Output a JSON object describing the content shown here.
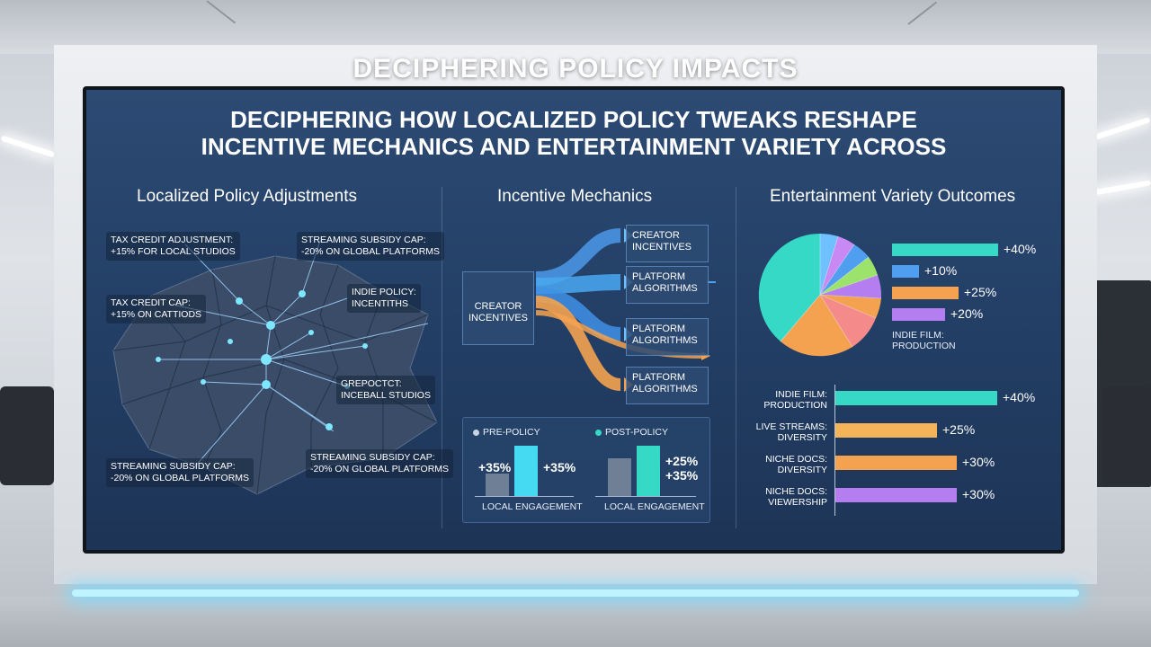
{
  "headline": "DECIPHERING POLICY IMPACTS",
  "panel_title_line1": "DECIPHERING HOW LOCALIZED POLICY TWEAKS RESHAPE",
  "panel_title_line2": "INCENTIVE MECHANICS AND ENTERTAINMENT VARIETY ACROSS",
  "colors": {
    "teal": "#35d9c6",
    "blue": "#4f9ef0",
    "orange": "#f4a24f",
    "purple": "#b47ef0",
    "cyan": "#46d9f2"
  },
  "left": {
    "title": "Localized Policy Adjustments",
    "labels": [
      {
        "line1": "TAX CREDIT ADJUSTMENT:",
        "line2": "+15% FOR LOCAL STUDIOS"
      },
      {
        "line1": "STREAMING SUBSIDY CAP:",
        "line2": "-20% ON GLOBAL PLATFORMS"
      },
      {
        "line1": "TAX CREDIT CAP:",
        "line2": "+15% ON CATTIODS"
      },
      {
        "line1": "INDIE POLICY:",
        "line2": "INCENTITHS"
      },
      {
        "line1": "GREPOCTCT:",
        "line2": "INCEBALL STUDIOS"
      },
      {
        "line1": "STREAMING SUBSIDY CAP:",
        "line2": "-20% ON GLOBAL PLATFORMS"
      },
      {
        "line1": "STREAMING SUBSIDY CAP:",
        "line2": "-20% ON GLOBAL PLATFORMS"
      }
    ]
  },
  "middle": {
    "title": "Incentive Mechanics",
    "source": {
      "line1": "CREATOR",
      "line2": "INCENTIVES"
    },
    "targets": [
      {
        "line1": "CREATOR",
        "line2": "INCENTIVES"
      },
      {
        "line1": "PLATFORM",
        "line2": "ALGORITHMS"
      },
      {
        "line1": "PLATFORM",
        "line2": "ALGORITHMS"
      },
      {
        "line1": "PLATFORM",
        "line2": "ALGORITHMS"
      }
    ],
    "legend_pre": "PRE-POLICY",
    "legend_post": "POST-POLICY",
    "pre": {
      "value_label": "+35%",
      "right_label": "+35%",
      "caption": "LOCAL ENGAGEMENT"
    },
    "post": {
      "value_label_1": "+25%",
      "value_label_2": "+35%",
      "caption": "LOCAL ENGAGEMENT"
    }
  },
  "right": {
    "title": "Entertainment Variety Outcomes",
    "pie_bars": [
      {
        "label": "+40%",
        "value": 40,
        "color": "#35d9c6"
      },
      {
        "label": "+10%",
        "value": 10,
        "color": "#4f9ef0"
      },
      {
        "label": "+25%",
        "value": 25,
        "color": "#f4a24f"
      },
      {
        "label": "+20%",
        "value": 20,
        "color": "#b47ef0"
      }
    ],
    "pie_caption": {
      "line1": "INDIE FILM:",
      "line2": "PRODUCTION"
    },
    "hbars": [
      {
        "line1": "INDIE FILM:",
        "line2": "PRODUCTION",
        "label": "+40%",
        "value": 40,
        "color": "#35d9c6"
      },
      {
        "line1": "LIVE STREAMS:",
        "line2": "DIVERSITY",
        "label": "+25%",
        "value": 25,
        "color": "#f4b45a"
      },
      {
        "line1": "NICHE DOCS:",
        "line2": "DIVERSITY",
        "label": "+30%",
        "value": 30,
        "color": "#f4a24f"
      },
      {
        "line1": "NICHE DOCS:",
        "line2": "VIEWERSHIP",
        "label": "+30%",
        "value": 30,
        "color": "#b47ef0"
      }
    ]
  }
}
